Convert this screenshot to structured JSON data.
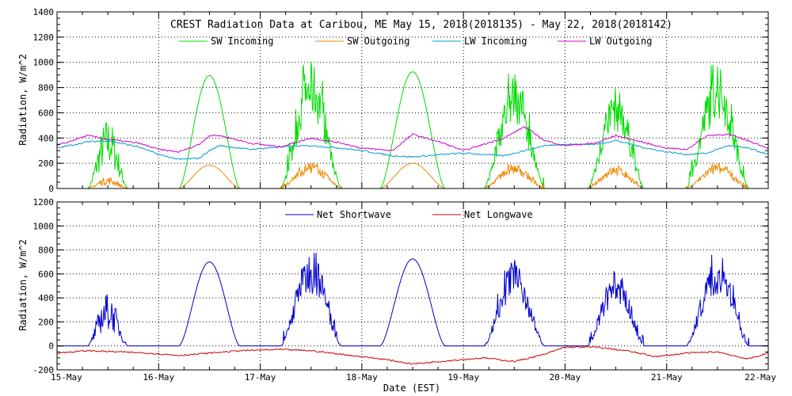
{
  "title": "CREST Radiation Data at Caribou, ME   May 15, 2018(2018135) - May 22, 2018(2018142)",
  "xlabel": "Date (EST)",
  "chart_data": [
    {
      "type": "line",
      "ylabel": "Radiation, W/m^2",
      "ylim": [
        0,
        1400
      ],
      "yticks": [
        0,
        200,
        400,
        600,
        800,
        1000,
        1200,
        1400
      ],
      "xlim": [
        0,
        7
      ],
      "xtick_labels": [
        "15-May",
        "16-May",
        "17-May",
        "18-May",
        "19-May",
        "20-May",
        "21-May",
        "22-May"
      ],
      "grid": true,
      "legend_position": "top",
      "series": [
        {
          "name": "SW Incoming",
          "color": "#00dd00",
          "days": [
            {
              "peak": 560,
              "width": 0.2,
              "mode": "ragged"
            },
            {
              "peak": 895,
              "width": 0.3,
              "mode": "smooth"
            },
            {
              "peak": 1010,
              "width": 0.3,
              "mode": "spiky"
            },
            {
              "peak": 925,
              "width": 0.32,
              "mode": "smooth"
            },
            {
              "peak": 915,
              "width": 0.3,
              "mode": "spiky"
            },
            {
              "peak": 810,
              "width": 0.28,
              "mode": "spiky"
            },
            {
              "peak": 980,
              "width": 0.31,
              "mode": "spiky"
            }
          ]
        },
        {
          "name": "SW Outgoing",
          "color": "#ee8800",
          "days": [
            {
              "peak": 95,
              "width": 0.2,
              "mode": "ragged"
            },
            {
              "peak": 185,
              "width": 0.3,
              "mode": "smooth"
            },
            {
              "peak": 210,
              "width": 0.3,
              "mode": "spiky"
            },
            {
              "peak": 200,
              "width": 0.32,
              "mode": "smooth"
            },
            {
              "peak": 195,
              "width": 0.3,
              "mode": "spiky"
            },
            {
              "peak": 180,
              "width": 0.28,
              "mode": "spiky"
            },
            {
              "peak": 200,
              "width": 0.31,
              "mode": "spiky"
            }
          ]
        },
        {
          "name": "LW Incoming",
          "color": "#0099cc",
          "x": [
            0,
            0.3,
            0.5,
            0.8,
            1.0,
            1.2,
            1.4,
            1.5,
            1.6,
            1.9,
            2.2,
            2.5,
            2.8,
            3.0,
            3.3,
            3.5,
            3.8,
            4.0,
            4.4,
            4.6,
            4.8,
            5.0,
            5.3,
            5.5,
            5.8,
            6.0,
            6.2,
            6.4,
            6.6,
            6.8,
            7.0
          ],
          "y": [
            320,
            370,
            380,
            330,
            270,
            230,
            240,
            300,
            340,
            310,
            330,
            340,
            320,
            300,
            260,
            250,
            270,
            280,
            260,
            300,
            340,
            350,
            350,
            380,
            320,
            290,
            270,
            280,
            340,
            320,
            270
          ]
        },
        {
          "name": "LW Outgoing",
          "color": "#cc00cc",
          "x": [
            0,
            0.3,
            0.5,
            0.8,
            1.0,
            1.2,
            1.4,
            1.5,
            1.6,
            1.9,
            2.2,
            2.5,
            2.8,
            3.0,
            3.3,
            3.5,
            3.8,
            4.0,
            4.4,
            4.6,
            4.8,
            5.0,
            5.3,
            5.5,
            5.8,
            6.0,
            6.2,
            6.4,
            6.6,
            6.8,
            7.0
          ],
          "y": [
            340,
            420,
            390,
            360,
            310,
            290,
            350,
            420,
            420,
            360,
            330,
            400,
            360,
            320,
            300,
            430,
            360,
            300,
            400,
            490,
            380,
            340,
            360,
            420,
            360,
            320,
            310,
            420,
            430,
            380,
            320
          ]
        }
      ]
    },
    {
      "type": "line",
      "ylabel": "Radiation, W/m^2",
      "ylim": [
        -200,
        1200
      ],
      "yticks": [
        -200,
        0,
        200,
        400,
        600,
        800,
        1000,
        1200
      ],
      "xlim": [
        0,
        7
      ],
      "xtick_labels": [
        "15-May",
        "16-May",
        "17-May",
        "18-May",
        "19-May",
        "20-May",
        "21-May",
        "22-May"
      ],
      "grid": true,
      "legend_position": "top",
      "series": [
        {
          "name": "Net Shortwave",
          "color": "#0000cc",
          "days": [
            {
              "peak": 440,
              "width": 0.2,
              "mode": "ragged"
            },
            {
              "peak": 700,
              "width": 0.3,
              "mode": "smooth"
            },
            {
              "peak": 790,
              "width": 0.3,
              "mode": "spiky"
            },
            {
              "peak": 725,
              "width": 0.32,
              "mode": "smooth"
            },
            {
              "peak": 715,
              "width": 0.3,
              "mode": "spiky"
            },
            {
              "peak": 630,
              "width": 0.28,
              "mode": "spiky"
            },
            {
              "peak": 760,
              "width": 0.31,
              "mode": "spiky"
            }
          ]
        },
        {
          "name": "Net Longwave",
          "color": "#cc0000",
          "x": [
            0,
            0.3,
            0.6,
            0.9,
            1.2,
            1.5,
            1.8,
            2.2,
            2.5,
            2.9,
            3.2,
            3.5,
            3.9,
            4.2,
            4.5,
            4.8,
            5.0,
            5.3,
            5.6,
            5.9,
            6.2,
            6.5,
            6.8,
            7.0
          ],
          "y": [
            -60,
            -40,
            -50,
            -60,
            -80,
            -60,
            -40,
            -30,
            -40,
            -80,
            -110,
            -150,
            -120,
            -100,
            -130,
            -70,
            -10,
            -10,
            -40,
            -90,
            -60,
            -50,
            -110,
            -60
          ]
        }
      ]
    }
  ]
}
